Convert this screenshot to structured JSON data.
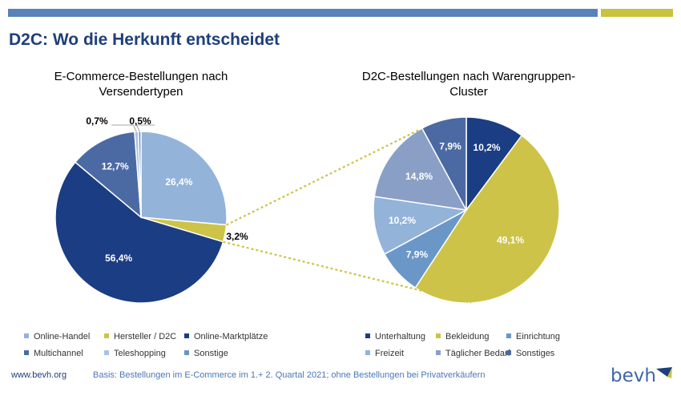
{
  "page": {
    "title": "D2C: Wo die Herkunft entscheidet",
    "footer_url": "www.bevh.org",
    "footer_note": "Basis: Bestellungen im E-Commerce im 1.+ 2. Quartal 2021;  ohne Bestellungen bei Privatverkäufern",
    "logo_text": "bevh",
    "colors": {
      "bar_blue": "#5a82b8",
      "bar_yellow": "#c9c23c",
      "title": "#1e3f7a"
    }
  },
  "chart_data": [
    {
      "type": "pie",
      "title_lines": [
        "E-Commerce-Bestellungen nach",
        "Versendertypen"
      ],
      "categories": [
        "Online-Handel",
        "Hersteller / D2C",
        "Online-Marktplätze",
        "Multichannel",
        "Teleshopping",
        "Sonstige"
      ],
      "values": [
        26.4,
        3.2,
        56.4,
        12.7,
        0.7,
        0.5
      ],
      "labels": [
        "26,4%",
        "3,2%",
        "56,4%",
        "12,7%",
        "0,7%",
        "0,5%"
      ],
      "colors": [
        "#93b3d9",
        "#cdc348",
        "#1b3d84",
        "#4b6aa3",
        "#a9c3e3",
        "#6d93c6"
      ],
      "legend_position": "bottom"
    },
    {
      "type": "pie",
      "title_lines": [
        "D2C-Bestellungen nach Warengruppen-",
        "Cluster"
      ],
      "categories": [
        "Unterhaltung",
        "Bekleidung",
        "Einrichtung",
        "Freizeit",
        "Täglicher Bedarf",
        "Sonstiges"
      ],
      "values": [
        10.2,
        49.1,
        7.9,
        10.2,
        14.8,
        7.9
      ],
      "labels": [
        "10,2%",
        "49,1%",
        "7,9%",
        "10,2%",
        "14,8%",
        "7,9%"
      ],
      "colors": [
        "#1b3d84",
        "#cdc348",
        "#6a97c8",
        "#93b3d9",
        "#8a9fc6",
        "#4b6aa3"
      ],
      "legend_position": "bottom"
    }
  ]
}
